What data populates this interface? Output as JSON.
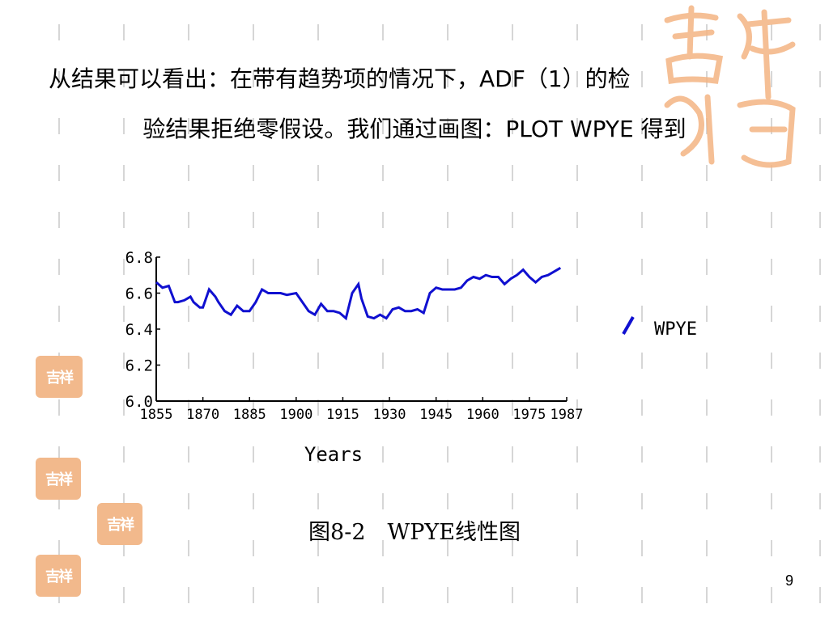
{
  "heading": {
    "line1": "从结果可以看出：在带有趋势项的情况下，ADF（1）的检",
    "line2": "验结果拒绝零假设。我们通过画图：PLOT WPYE 得到"
  },
  "caption": "图8-2　WPYE线性图",
  "page_number": "9",
  "decor": {
    "seal_text": "吉祥如意",
    "accent_color": "#f2b98c"
  },
  "chart_data": {
    "type": "line",
    "xlabel": "Years",
    "ylabel": "",
    "xlim": [
      1855,
      1987
    ],
    "ylim": [
      6.0,
      6.8
    ],
    "x_ticks": [
      "1855",
      "1870",
      "1885",
      "1900",
      "1915",
      "1930",
      "1945",
      "1960",
      "1975",
      "1987"
    ],
    "y_ticks": [
      "6.0",
      "6.2",
      "6.4",
      "6.6",
      "6.8"
    ],
    "legend_position": "right",
    "series": [
      {
        "name": "WPYE",
        "color": "#1010d0",
        "x": [
          1855,
          1857,
          1859,
          1861,
          1862,
          1864,
          1866,
          1867,
          1869,
          1870,
          1872,
          1874,
          1875,
          1877,
          1879,
          1881,
          1883,
          1885,
          1887,
          1889,
          1891,
          1893,
          1895,
          1897,
          1900,
          1902,
          1904,
          1906,
          1908,
          1910,
          1912,
          1914,
          1916,
          1918,
          1920,
          1921,
          1923,
          1925,
          1927,
          1929,
          1931,
          1933,
          1935,
          1937,
          1939,
          1941,
          1943,
          1945,
          1947,
          1949,
          1951,
          1953,
          1955,
          1957,
          1959,
          1961,
          1963,
          1965,
          1967,
          1969,
          1971,
          1973,
          1975,
          1977,
          1979,
          1981,
          1983,
          1985
        ],
        "y": [
          6.66,
          6.63,
          6.64,
          6.55,
          6.55,
          6.56,
          6.58,
          6.55,
          6.52,
          6.52,
          6.62,
          6.58,
          6.55,
          6.5,
          6.48,
          6.53,
          6.5,
          6.5,
          6.55,
          6.62,
          6.6,
          6.6,
          6.6,
          6.59,
          6.6,
          6.55,
          6.5,
          6.48,
          6.54,
          6.5,
          6.5,
          6.49,
          6.46,
          6.6,
          6.65,
          6.57,
          6.47,
          6.46,
          6.48,
          6.46,
          6.51,
          6.52,
          6.5,
          6.5,
          6.51,
          6.49,
          6.6,
          6.63,
          6.62,
          6.62,
          6.62,
          6.63,
          6.67,
          6.69,
          6.68,
          6.7,
          6.69,
          6.69,
          6.65,
          6.68,
          6.7,
          6.73,
          6.69,
          6.66,
          6.69,
          6.7,
          6.72,
          6.74
        ]
      }
    ]
  }
}
